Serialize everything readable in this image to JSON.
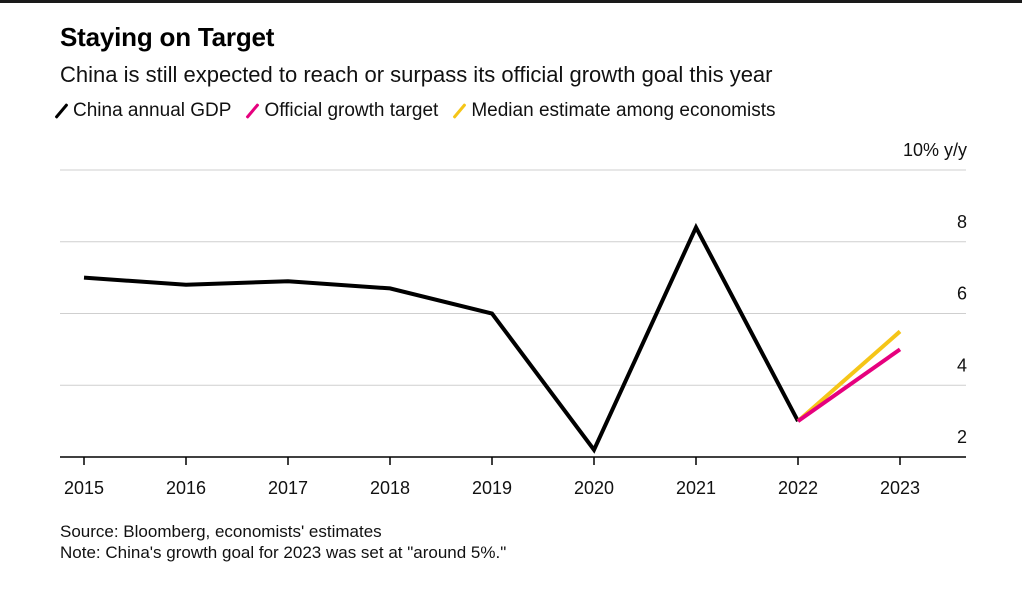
{
  "title": "Staying on Target",
  "subtitle": "China is still expected to reach or surpass its official growth goal this year",
  "legend": [
    {
      "label": "China annual GDP",
      "color": "#000000"
    },
    {
      "label": "Official growth target",
      "color": "#e6007e"
    },
    {
      "label": "Median estimate among economists",
      "color": "#f5c518"
    }
  ],
  "footer": {
    "source": "Source: Bloomberg, economists' estimates",
    "note": "Note: China's growth goal for 2023 was set at \"around 5%.\""
  },
  "chart_data": {
    "type": "line",
    "x": [
      "2015",
      "2016",
      "2017",
      "2018",
      "2019",
      "2020",
      "2021",
      "2022",
      "2023"
    ],
    "series": [
      {
        "name": "China annual GDP",
        "color": "#000000",
        "x": [
          "2015",
          "2016",
          "2017",
          "2018",
          "2019",
          "2020",
          "2021",
          "2022"
        ],
        "values": [
          7.0,
          6.8,
          6.9,
          6.7,
          6.0,
          2.2,
          8.4,
          3.0
        ]
      },
      {
        "name": "Official growth target",
        "color": "#e6007e",
        "x": [
          "2022",
          "2023"
        ],
        "values": [
          3.0,
          5.0
        ]
      },
      {
        "name": "Median estimate among economists",
        "color": "#f5c518",
        "x": [
          "2022",
          "2023"
        ],
        "values": [
          3.0,
          5.5
        ]
      }
    ],
    "yticks": [
      2,
      4,
      6,
      8
    ],
    "ytop_label": "10% y/y",
    "ylim": [
      2,
      10
    ],
    "grid": true,
    "yaxis_side": "right"
  }
}
